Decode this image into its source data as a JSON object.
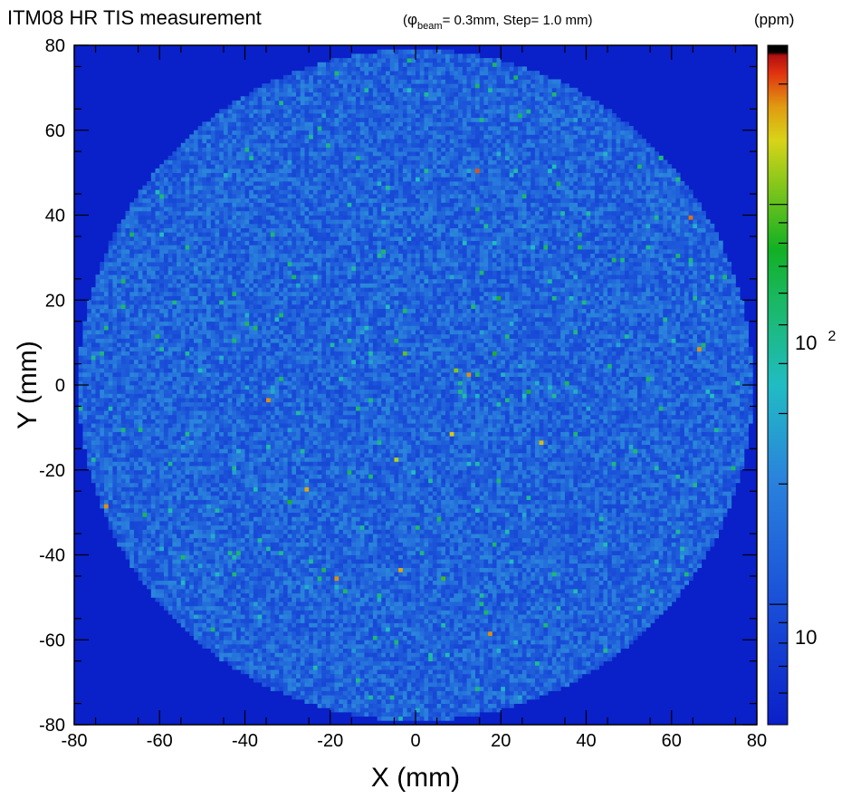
{
  "chart_data": {
    "type": "heatmap",
    "title": "ITM08 HR TIS measurement",
    "subtitle": {
      "symbol": "φ",
      "subscript": "beam",
      "text": "= 0.3mm, Step= 1.0 mm)",
      "open": "("
    },
    "xlabel": "X (mm)",
    "ylabel": "Y (mm)",
    "xlim": [
      -80,
      80
    ],
    "ylim": [
      -80,
      80
    ],
    "x_ticks": [
      "-80",
      "-60",
      "-40",
      "-20",
      "0",
      "20",
      "40",
      "60",
      "80"
    ],
    "y_ticks": [
      "80",
      "60",
      "40",
      "20",
      "0",
      "-20",
      "-40",
      "-60",
      "-80"
    ],
    "grid": false,
    "colorbar": {
      "unit": "(ppm)",
      "scale": "log",
      "range": [
        5,
        250
      ],
      "label_10": "10",
      "label_100_base": "10",
      "label_100_exp": "2"
    },
    "background_value": 5,
    "step_mm": 1.0,
    "beam_diameter_mm": 0.3,
    "disk": {
      "center": [
        0,
        0
      ],
      "radius_mm": 79,
      "typical_min_ppm": 9,
      "typical_max_ppm": 22
    },
    "hot_spots": [
      {
        "x": 14,
        "y": 50,
        "value": 200
      },
      {
        "x": 64,
        "y": 39,
        "value": 190
      },
      {
        "x": 66,
        "y": 8,
        "value": 180
      },
      {
        "x": 12,
        "y": 2,
        "value": 180
      },
      {
        "x": -35,
        "y": -4,
        "value": 180
      },
      {
        "x": -26,
        "y": -25,
        "value": 170
      },
      {
        "x": -73,
        "y": -29,
        "value": 180
      },
      {
        "x": -19,
        "y": -46,
        "value": 180
      },
      {
        "x": -4,
        "y": -44,
        "value": 170
      },
      {
        "x": 17,
        "y": -59,
        "value": 180
      },
      {
        "x": 29,
        "y": -14,
        "value": 160
      },
      {
        "x": 8,
        "y": -12,
        "value": 150
      },
      {
        "x": -5,
        "y": -18,
        "value": 130
      },
      {
        "x": 19,
        "y": 20,
        "value": 80
      },
      {
        "x": 18,
        "y": 7,
        "value": 80
      },
      {
        "x": -3,
        "y": 7,
        "value": 100
      },
      {
        "x": 9,
        "y": 3,
        "value": 110
      },
      {
        "x": -30,
        "y": -28,
        "value": 80
      },
      {
        "x": 6,
        "y": -46,
        "value": 90
      },
      {
        "x": 26,
        "y": -2,
        "value": 70
      },
      {
        "x": -67,
        "y": 35,
        "value": 60
      },
      {
        "x": -64,
        "y": -31,
        "value": 60
      }
    ]
  }
}
